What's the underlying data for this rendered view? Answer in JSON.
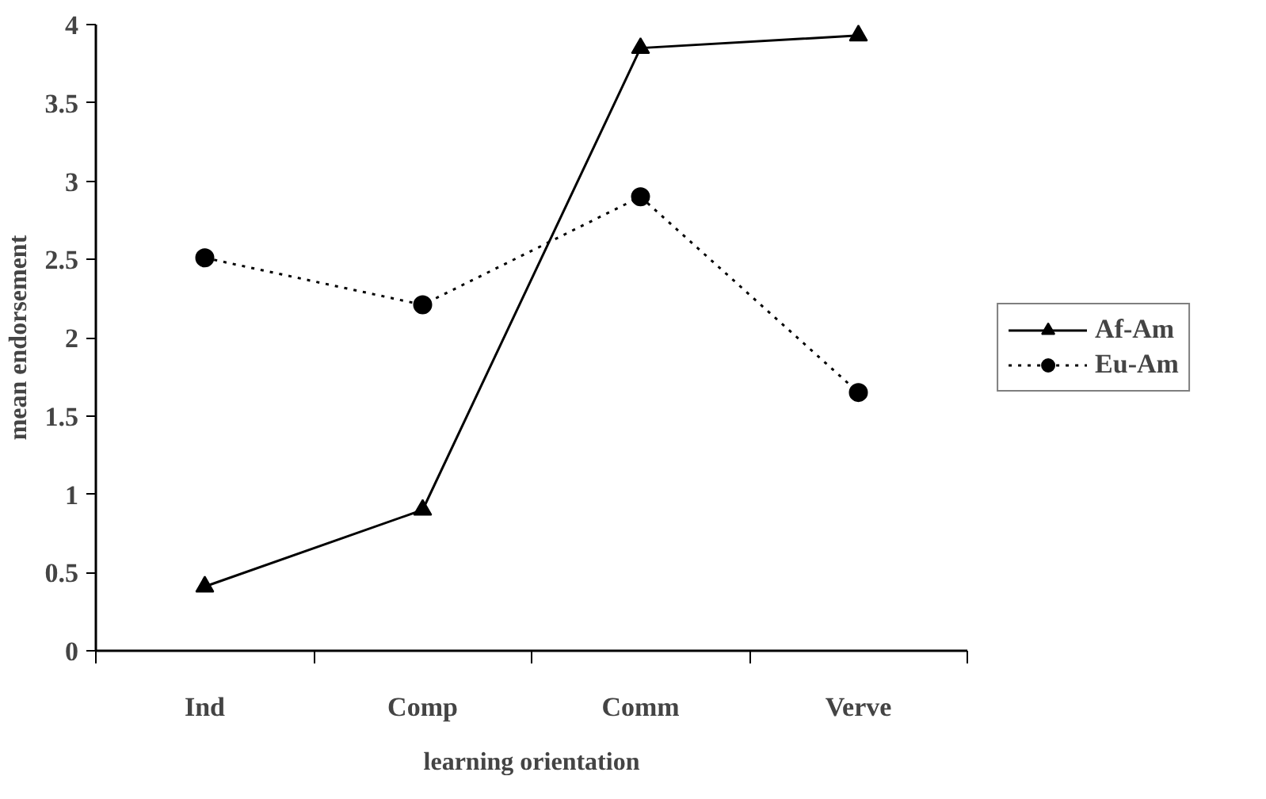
{
  "chart_data": {
    "type": "line",
    "xlabel": "learning orientation",
    "ylabel": "mean endorsement",
    "categories": [
      "Ind",
      "Comp",
      "Comm",
      "Verve"
    ],
    "series": [
      {
        "name": "Af-Am",
        "color": "#000000",
        "values": [
          0.41,
          0.9,
          3.85,
          3.93
        ],
        "marker": "triangle",
        "line_style": "solid"
      },
      {
        "name": "Eu-Am",
        "color": "#000000",
        "values": [
          2.51,
          2.21,
          2.9,
          1.65
        ],
        "marker": "circle",
        "line_style": "dotted"
      }
    ],
    "ylim": [
      0,
      4
    ],
    "yticks": [
      0,
      0.5,
      1,
      1.5,
      2,
      2.5,
      3,
      3.5,
      4
    ],
    "grid": false,
    "legend": "right"
  }
}
